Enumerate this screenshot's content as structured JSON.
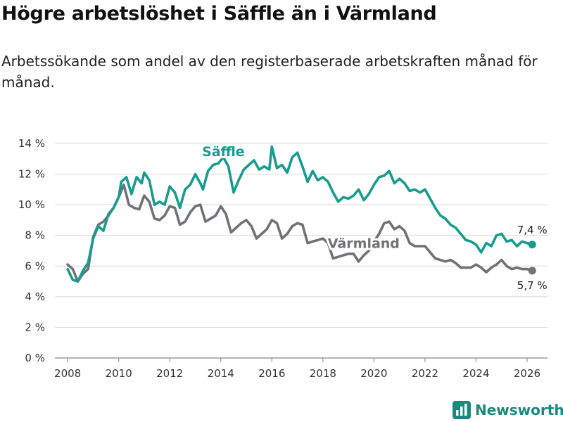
{
  "header": {
    "title": "Högre arbetslöshet i Säffle än i Värmland",
    "subtitle": "Arbetssökande som andel av den registerbaserade arbetskraften månad för månad."
  },
  "brand": {
    "name": "Newsworthy"
  },
  "colors": {
    "saffle": "#179c90",
    "varmland": "#727078",
    "grid": "#d9d9d9"
  },
  "chart_data": {
    "type": "line",
    "title": "Högre arbetslöshet i Säffle än i Värmland",
    "ylabel": "",
    "xlabel": "",
    "ylim": [
      0,
      14
    ],
    "xlim": [
      2007.5,
      2026.8
    ],
    "y_ticks": [
      0,
      2,
      4,
      6,
      8,
      10,
      12,
      14
    ],
    "y_tick_labels": [
      "0 %",
      "2 %",
      "4 %",
      "6 %",
      "8 %",
      "10 %",
      "12 %",
      "14 %"
    ],
    "x_ticks": [
      2008,
      2010,
      2012,
      2014,
      2016,
      2018,
      2020,
      2022,
      2024,
      2026
    ],
    "x_tick_labels": [
      "2008",
      "2010",
      "2012",
      "2014",
      "2016",
      "2018",
      "2020",
      "2022",
      "2024",
      "2026"
    ],
    "grid": true,
    "series": [
      {
        "name": "Säffle",
        "end_label": "7,4 %",
        "points": [
          [
            2008.0,
            5.8
          ],
          [
            2008.2,
            5.1
          ],
          [
            2008.4,
            5.0
          ],
          [
            2008.6,
            5.7
          ],
          [
            2008.8,
            6.2
          ],
          [
            2008.9,
            7.0
          ],
          [
            2009.0,
            7.8
          ],
          [
            2009.2,
            8.6
          ],
          [
            2009.4,
            8.3
          ],
          [
            2009.6,
            9.4
          ],
          [
            2009.8,
            9.8
          ],
          [
            2010.0,
            10.5
          ],
          [
            2010.1,
            11.5
          ],
          [
            2010.3,
            11.8
          ],
          [
            2010.5,
            10.7
          ],
          [
            2010.7,
            11.8
          ],
          [
            2010.9,
            11.4
          ],
          [
            2011.0,
            12.1
          ],
          [
            2011.2,
            11.6
          ],
          [
            2011.4,
            10.0
          ],
          [
            2011.6,
            10.2
          ],
          [
            2011.8,
            10.0
          ],
          [
            2012.0,
            11.2
          ],
          [
            2012.2,
            10.8
          ],
          [
            2012.4,
            9.8
          ],
          [
            2012.6,
            11.0
          ],
          [
            2012.8,
            11.3
          ],
          [
            2013.0,
            12.0
          ],
          [
            2013.2,
            11.4
          ],
          [
            2013.3,
            11.0
          ],
          [
            2013.5,
            12.2
          ],
          [
            2013.7,
            12.6
          ],
          [
            2013.9,
            12.7
          ],
          [
            2014.1,
            13.1
          ],
          [
            2014.3,
            12.5
          ],
          [
            2014.5,
            10.8
          ],
          [
            2014.7,
            11.6
          ],
          [
            2014.9,
            12.3
          ],
          [
            2015.1,
            12.6
          ],
          [
            2015.3,
            12.9
          ],
          [
            2015.5,
            12.3
          ],
          [
            2015.7,
            12.5
          ],
          [
            2015.9,
            12.3
          ],
          [
            2016.0,
            13.8
          ],
          [
            2016.2,
            12.4
          ],
          [
            2016.4,
            12.6
          ],
          [
            2016.6,
            12.1
          ],
          [
            2016.8,
            13.1
          ],
          [
            2017.0,
            13.4
          ],
          [
            2017.2,
            12.5
          ],
          [
            2017.4,
            11.5
          ],
          [
            2017.6,
            12.2
          ],
          [
            2017.8,
            11.6
          ],
          [
            2018.0,
            11.8
          ],
          [
            2018.2,
            11.5
          ],
          [
            2018.4,
            10.8
          ],
          [
            2018.6,
            10.2
          ],
          [
            2018.8,
            10.5
          ],
          [
            2019.0,
            10.4
          ],
          [
            2019.2,
            10.6
          ],
          [
            2019.4,
            11.0
          ],
          [
            2019.6,
            10.3
          ],
          [
            2019.8,
            10.7
          ],
          [
            2020.0,
            11.3
          ],
          [
            2020.2,
            11.8
          ],
          [
            2020.4,
            11.9
          ],
          [
            2020.6,
            12.2
          ],
          [
            2020.8,
            11.4
          ],
          [
            2021.0,
            11.7
          ],
          [
            2021.2,
            11.4
          ],
          [
            2021.4,
            10.9
          ],
          [
            2021.6,
            11.0
          ],
          [
            2021.8,
            10.8
          ],
          [
            2022.0,
            11.0
          ],
          [
            2022.2,
            10.4
          ],
          [
            2022.4,
            9.8
          ],
          [
            2022.6,
            9.3
          ],
          [
            2022.8,
            9.1
          ],
          [
            2023.0,
            8.7
          ],
          [
            2023.2,
            8.5
          ],
          [
            2023.4,
            8.1
          ],
          [
            2023.6,
            7.7
          ],
          [
            2023.8,
            7.6
          ],
          [
            2024.0,
            7.4
          ],
          [
            2024.2,
            6.9
          ],
          [
            2024.4,
            7.5
          ],
          [
            2024.6,
            7.3
          ],
          [
            2024.8,
            8.0
          ],
          [
            2025.0,
            8.1
          ],
          [
            2025.2,
            7.6
          ],
          [
            2025.4,
            7.7
          ],
          [
            2025.6,
            7.3
          ],
          [
            2025.8,
            7.6
          ],
          [
            2026.0,
            7.5
          ],
          [
            2026.2,
            7.4
          ]
        ]
      },
      {
        "name": "Värmland",
        "end_label": "5,7 %",
        "points": [
          [
            2008.0,
            6.1
          ],
          [
            2008.2,
            5.8
          ],
          [
            2008.4,
            5.0
          ],
          [
            2008.6,
            5.5
          ],
          [
            2008.8,
            5.8
          ],
          [
            2009.0,
            7.9
          ],
          [
            2009.2,
            8.7
          ],
          [
            2009.4,
            8.9
          ],
          [
            2009.6,
            9.3
          ],
          [
            2009.8,
            9.8
          ],
          [
            2010.0,
            10.5
          ],
          [
            2010.2,
            11.3
          ],
          [
            2010.4,
            10.0
          ],
          [
            2010.6,
            9.8
          ],
          [
            2010.8,
            9.7
          ],
          [
            2011.0,
            10.6
          ],
          [
            2011.2,
            10.2
          ],
          [
            2011.4,
            9.1
          ],
          [
            2011.6,
            9.0
          ],
          [
            2011.8,
            9.3
          ],
          [
            2012.0,
            9.9
          ],
          [
            2012.2,
            9.8
          ],
          [
            2012.4,
            8.7
          ],
          [
            2012.6,
            8.9
          ],
          [
            2012.8,
            9.5
          ],
          [
            2013.0,
            9.9
          ],
          [
            2013.2,
            10.0
          ],
          [
            2013.4,
            8.9
          ],
          [
            2013.6,
            9.1
          ],
          [
            2013.8,
            9.3
          ],
          [
            2014.0,
            9.9
          ],
          [
            2014.2,
            9.4
          ],
          [
            2014.4,
            8.2
          ],
          [
            2014.6,
            8.5
          ],
          [
            2014.8,
            8.8
          ],
          [
            2015.0,
            9.0
          ],
          [
            2015.2,
            8.6
          ],
          [
            2015.4,
            7.8
          ],
          [
            2015.6,
            8.1
          ],
          [
            2015.8,
            8.4
          ],
          [
            2016.0,
            9.0
          ],
          [
            2016.2,
            8.8
          ],
          [
            2016.4,
            7.8
          ],
          [
            2016.6,
            8.1
          ],
          [
            2016.8,
            8.6
          ],
          [
            2017.0,
            8.8
          ],
          [
            2017.2,
            8.7
          ],
          [
            2017.4,
            7.5
          ],
          [
            2017.6,
            7.6
          ],
          [
            2017.8,
            7.7
          ],
          [
            2018.0,
            7.8
          ],
          [
            2018.2,
            7.5
          ],
          [
            2018.4,
            6.5
          ],
          [
            2018.6,
            6.6
          ],
          [
            2018.8,
            6.7
          ],
          [
            2019.0,
            6.8
          ],
          [
            2019.2,
            6.8
          ],
          [
            2019.4,
            6.3
          ],
          [
            2019.6,
            6.7
          ],
          [
            2019.8,
            7.0
          ],
          [
            2020.0,
            7.6
          ],
          [
            2020.2,
            8.1
          ],
          [
            2020.4,
            8.8
          ],
          [
            2020.6,
            8.9
          ],
          [
            2020.8,
            8.4
          ],
          [
            2021.0,
            8.6
          ],
          [
            2021.2,
            8.3
          ],
          [
            2021.4,
            7.5
          ],
          [
            2021.6,
            7.3
          ],
          [
            2021.8,
            7.3
          ],
          [
            2022.0,
            7.3
          ],
          [
            2022.2,
            6.9
          ],
          [
            2022.4,
            6.5
          ],
          [
            2022.6,
            6.4
          ],
          [
            2022.8,
            6.3
          ],
          [
            2023.0,
            6.4
          ],
          [
            2023.2,
            6.2
          ],
          [
            2023.4,
            5.9
          ],
          [
            2023.6,
            5.9
          ],
          [
            2023.8,
            5.9
          ],
          [
            2024.0,
            6.1
          ],
          [
            2024.2,
            5.9
          ],
          [
            2024.4,
            5.6
          ],
          [
            2024.6,
            5.9
          ],
          [
            2024.8,
            6.1
          ],
          [
            2025.0,
            6.4
          ],
          [
            2025.2,
            6.0
          ],
          [
            2025.4,
            5.8
          ],
          [
            2025.6,
            5.9
          ],
          [
            2025.8,
            5.8
          ],
          [
            2026.0,
            5.8
          ],
          [
            2026.2,
            5.7
          ]
        ]
      }
    ],
    "annotations": [
      {
        "series": "Säffle",
        "text": "Säffle",
        "at": [
          2014.1,
          13.5
        ]
      },
      {
        "series": "Värmland",
        "text": "Värmland",
        "at": [
          2019.6,
          7.5
        ]
      }
    ]
  }
}
